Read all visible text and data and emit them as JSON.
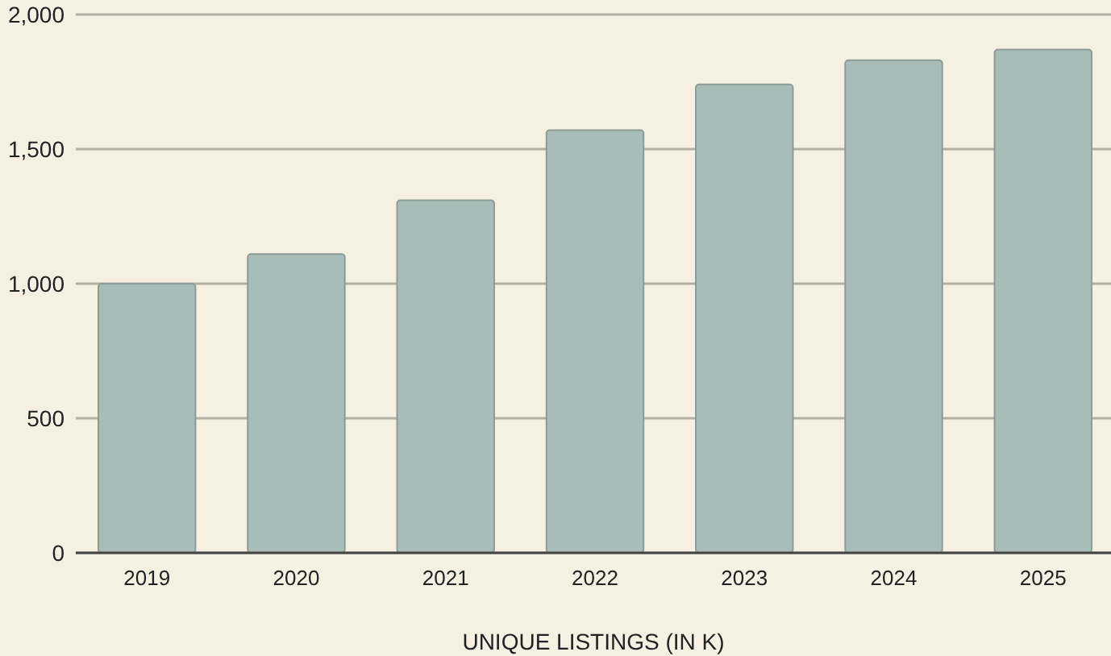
{
  "chart_data": {
    "type": "bar",
    "xlabel": "UNIQUE LISTINGS (IN K)",
    "categories": [
      "2019",
      "2020",
      "2021",
      "2022",
      "2023",
      "2024",
      "2025"
    ],
    "values": [
      1000,
      1110,
      1310,
      1570,
      1740,
      1830,
      1870
    ],
    "color": "#a8bdb7",
    "ylim": [
      0,
      2000
    ],
    "yticks": [
      {
        "value": 0,
        "label": "0"
      },
      {
        "value": 500,
        "label": "500"
      },
      {
        "value": 1000,
        "label": "1,000"
      },
      {
        "value": 1500,
        "label": "1,500"
      },
      {
        "value": 2000,
        "label": "2,000"
      }
    ],
    "grid": "y"
  }
}
